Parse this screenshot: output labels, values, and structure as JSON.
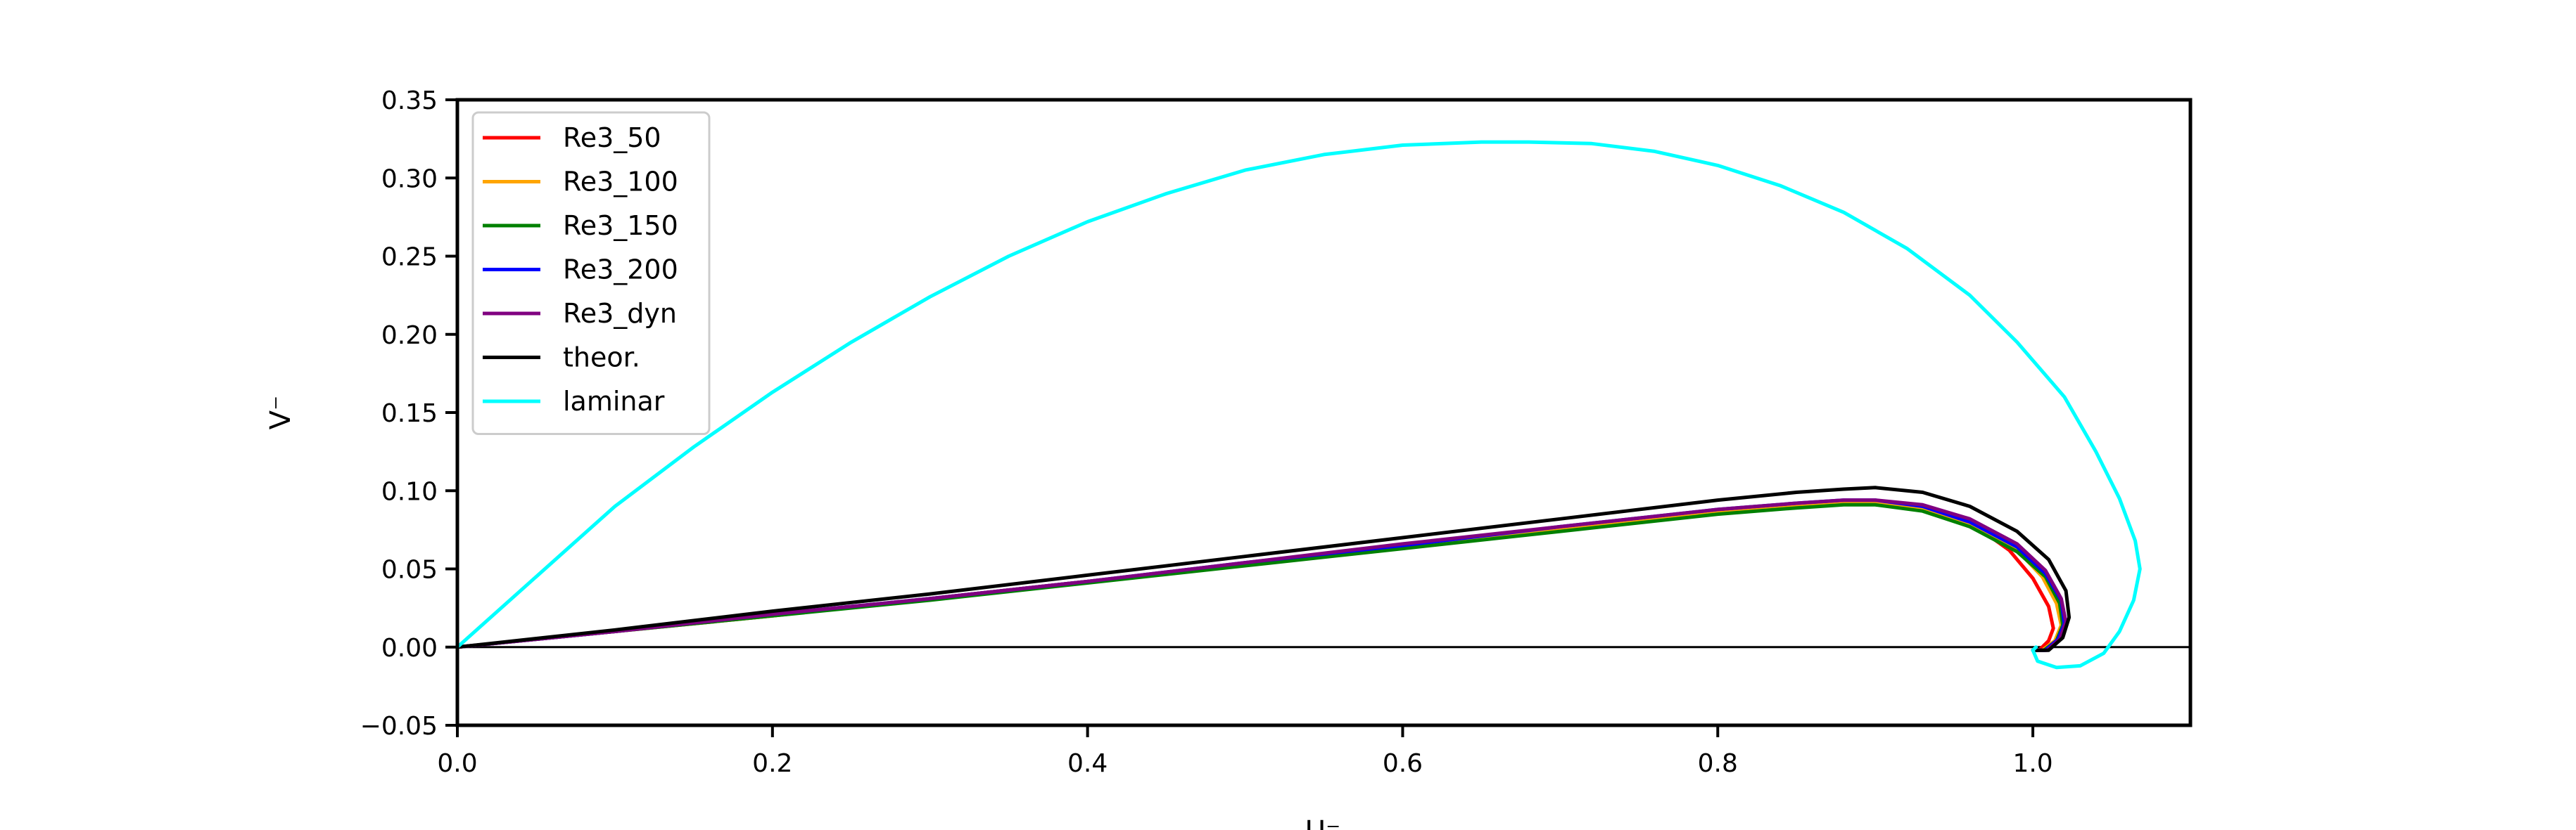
{
  "chart_data": {
    "type": "line",
    "title": "",
    "xlabel": "U⁻",
    "ylabel": "V⁻",
    "xlim": [
      0,
      1.1
    ],
    "ylim": [
      -0.05,
      0.35
    ],
    "xticks": [
      0.0,
      0.2,
      0.4,
      0.6,
      0.8,
      1.0
    ],
    "yticks": [
      -0.05,
      0.0,
      0.05,
      0.1,
      0.15,
      0.2,
      0.25,
      0.3,
      0.35
    ],
    "xtick_labels": [
      "0.0",
      "0.2",
      "0.4",
      "0.6",
      "0.8",
      "1.0"
    ],
    "ytick_labels": [
      "−0.05",
      "0.00",
      "0.05",
      "0.10",
      "0.15",
      "0.20",
      "0.25",
      "0.30",
      "0.35"
    ],
    "grid": false,
    "zero_line": true,
    "legend_position": "top-left",
    "series": [
      {
        "name": "Re3_50",
        "color": "#ff0000",
        "points": [
          [
            0,
            0
          ],
          [
            0.1,
            0.01
          ],
          [
            0.2,
            0.02
          ],
          [
            0.3,
            0.031
          ],
          [
            0.4,
            0.042
          ],
          [
            0.5,
            0.053
          ],
          [
            0.6,
            0.065
          ],
          [
            0.7,
            0.076
          ],
          [
            0.8,
            0.087
          ],
          [
            0.85,
            0.091
          ],
          [
            0.88,
            0.093
          ],
          [
            0.9,
            0.092
          ],
          [
            0.93,
            0.089
          ],
          [
            0.96,
            0.08
          ],
          [
            0.985,
            0.062
          ],
          [
            1.0,
            0.044
          ],
          [
            1.01,
            0.026
          ],
          [
            1.013,
            0.012
          ],
          [
            1.01,
            0.004
          ],
          [
            1.004,
            -0.002
          ],
          [
            1.0,
            -0.002
          ]
        ]
      },
      {
        "name": "Re3_100",
        "color": "#ffa500",
        "points": [
          [
            0,
            0
          ],
          [
            0.1,
            0.01
          ],
          [
            0.2,
            0.02
          ],
          [
            0.3,
            0.031
          ],
          [
            0.4,
            0.042
          ],
          [
            0.5,
            0.053
          ],
          [
            0.6,
            0.065
          ],
          [
            0.7,
            0.076
          ],
          [
            0.8,
            0.087
          ],
          [
            0.85,
            0.091
          ],
          [
            0.88,
            0.093
          ],
          [
            0.9,
            0.092
          ],
          [
            0.93,
            0.088
          ],
          [
            0.96,
            0.078
          ],
          [
            0.99,
            0.062
          ],
          [
            1.006,
            0.045
          ],
          [
            1.015,
            0.028
          ],
          [
            1.018,
            0.014
          ],
          [
            1.014,
            0.004
          ],
          [
            1.006,
            -0.002
          ],
          [
            1.0,
            -0.002
          ]
        ]
      },
      {
        "name": "Re3_150",
        "color": "#008000",
        "points": [
          [
            0,
            0
          ],
          [
            0.1,
            0.01
          ],
          [
            0.2,
            0.02
          ],
          [
            0.3,
            0.03
          ],
          [
            0.4,
            0.041
          ],
          [
            0.5,
            0.052
          ],
          [
            0.6,
            0.063
          ],
          [
            0.7,
            0.074
          ],
          [
            0.8,
            0.085
          ],
          [
            0.85,
            0.089
          ],
          [
            0.88,
            0.091
          ],
          [
            0.9,
            0.091
          ],
          [
            0.93,
            0.087
          ],
          [
            0.96,
            0.077
          ],
          [
            0.99,
            0.061
          ],
          [
            1.008,
            0.045
          ],
          [
            1.017,
            0.028
          ],
          [
            1.019,
            0.014
          ],
          [
            1.015,
            0.004
          ],
          [
            1.007,
            -0.002
          ],
          [
            1.0,
            -0.002
          ]
        ]
      },
      {
        "name": "Re3_200",
        "color": "#0000ff",
        "points": [
          [
            0,
            0
          ],
          [
            0.1,
            0.01
          ],
          [
            0.2,
            0.021
          ],
          [
            0.3,
            0.031
          ],
          [
            0.4,
            0.042
          ],
          [
            0.5,
            0.054
          ],
          [
            0.6,
            0.065
          ],
          [
            0.7,
            0.077
          ],
          [
            0.8,
            0.088
          ],
          [
            0.85,
            0.092
          ],
          [
            0.88,
            0.094
          ],
          [
            0.9,
            0.094
          ],
          [
            0.93,
            0.09
          ],
          [
            0.96,
            0.08
          ],
          [
            0.99,
            0.064
          ],
          [
            1.008,
            0.047
          ],
          [
            1.018,
            0.03
          ],
          [
            1.02,
            0.015
          ],
          [
            1.016,
            0.005
          ],
          [
            1.008,
            -0.002
          ],
          [
            1.0,
            -0.002
          ]
        ]
      },
      {
        "name": "Re3_dyn",
        "color": "#800080",
        "points": [
          [
            0,
            0
          ],
          [
            0.1,
            0.01
          ],
          [
            0.2,
            0.021
          ],
          [
            0.3,
            0.031
          ],
          [
            0.4,
            0.042
          ],
          [
            0.5,
            0.054
          ],
          [
            0.6,
            0.066
          ],
          [
            0.7,
            0.077
          ],
          [
            0.8,
            0.088
          ],
          [
            0.85,
            0.092
          ],
          [
            0.88,
            0.094
          ],
          [
            0.9,
            0.094
          ],
          [
            0.93,
            0.091
          ],
          [
            0.96,
            0.082
          ],
          [
            0.99,
            0.066
          ],
          [
            1.008,
            0.049
          ],
          [
            1.018,
            0.031
          ],
          [
            1.021,
            0.016
          ],
          [
            1.017,
            0.005
          ],
          [
            1.009,
            -0.002
          ],
          [
            1.0,
            -0.002
          ]
        ]
      },
      {
        "name": "theor.",
        "color": "#000000",
        "points": [
          [
            0,
            0
          ],
          [
            0.1,
            0.011
          ],
          [
            0.2,
            0.023
          ],
          [
            0.3,
            0.034
          ],
          [
            0.4,
            0.046
          ],
          [
            0.5,
            0.058
          ],
          [
            0.6,
            0.07
          ],
          [
            0.7,
            0.082
          ],
          [
            0.8,
            0.094
          ],
          [
            0.85,
            0.099
          ],
          [
            0.88,
            0.101
          ],
          [
            0.9,
            0.102
          ],
          [
            0.93,
            0.099
          ],
          [
            0.96,
            0.09
          ],
          [
            0.99,
            0.074
          ],
          [
            1.01,
            0.056
          ],
          [
            1.021,
            0.036
          ],
          [
            1.023,
            0.019
          ],
          [
            1.019,
            0.006
          ],
          [
            1.01,
            -0.002
          ],
          [
            1.0,
            -0.002
          ]
        ]
      },
      {
        "name": "laminar",
        "color": "#00ffff",
        "points": [
          [
            0,
            0
          ],
          [
            0.05,
            0.045
          ],
          [
            0.1,
            0.09
          ],
          [
            0.15,
            0.128
          ],
          [
            0.2,
            0.163
          ],
          [
            0.25,
            0.195
          ],
          [
            0.3,
            0.224
          ],
          [
            0.35,
            0.25
          ],
          [
            0.4,
            0.272
          ],
          [
            0.45,
            0.29
          ],
          [
            0.5,
            0.305
          ],
          [
            0.55,
            0.315
          ],
          [
            0.6,
            0.321
          ],
          [
            0.65,
            0.323
          ],
          [
            0.68,
            0.323
          ],
          [
            0.72,
            0.322
          ],
          [
            0.76,
            0.317
          ],
          [
            0.8,
            0.308
          ],
          [
            0.84,
            0.295
          ],
          [
            0.88,
            0.278
          ],
          [
            0.92,
            0.255
          ],
          [
            0.96,
            0.225
          ],
          [
            0.99,
            0.195
          ],
          [
            1.02,
            0.16
          ],
          [
            1.04,
            0.125
          ],
          [
            1.055,
            0.095
          ],
          [
            1.065,
            0.068
          ],
          [
            1.068,
            0.05
          ],
          [
            1.064,
            0.03
          ],
          [
            1.055,
            0.01
          ],
          [
            1.045,
            -0.004
          ],
          [
            1.03,
            -0.012
          ],
          [
            1.015,
            -0.013
          ],
          [
            1.003,
            -0.009
          ],
          [
            1.0,
            -0.002
          ],
          [
            1.002,
            0.0
          ]
        ]
      }
    ]
  }
}
